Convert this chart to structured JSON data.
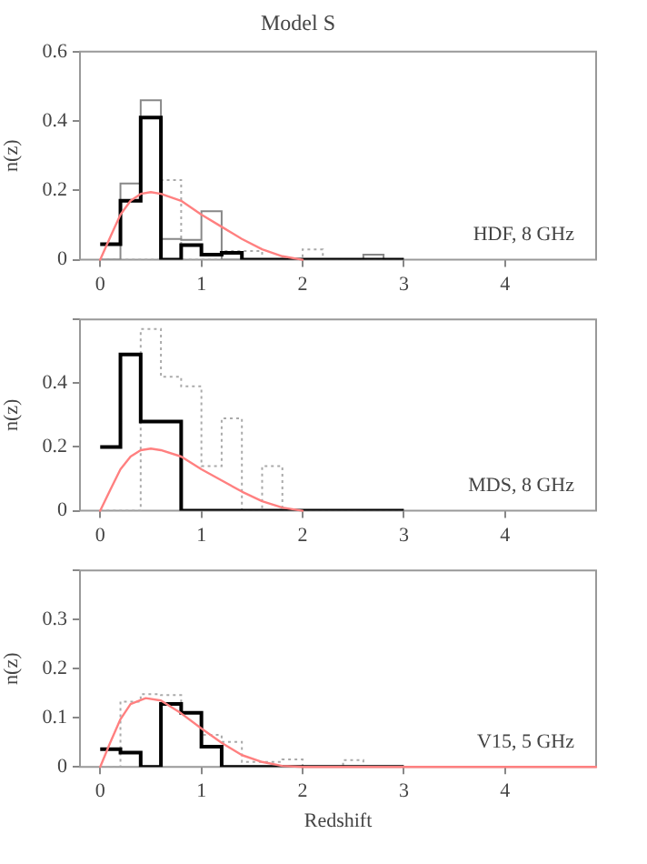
{
  "chart_data": [
    {
      "type": "histogram",
      "title": "Model S",
      "ylabel": "n(z)",
      "bins": [
        0,
        0.2,
        0.4,
        0.6,
        0.8,
        1.0,
        1.2,
        1.4,
        1.6,
        1.8,
        2.0,
        2.2,
        2.4,
        2.6,
        2.8,
        3.0
      ],
      "xlim": [
        -0.2,
        4.9
      ],
      "xticks": [
        0,
        1,
        2,
        3,
        4
      ],
      "ylim": [
        0,
        0.6
      ],
      "yticks": [
        0,
        0.2,
        0.4,
        0.6
      ],
      "annotations": [
        "HDF, 8 GHz"
      ],
      "series": [
        {
          "color": "#000000",
          "values": [
            0.045,
            0.17,
            0.41,
            0,
            0.042,
            0.015,
            0.02,
            0,
            0,
            0,
            0,
            0,
            0,
            0,
            0
          ]
        },
        {
          "color": "#888888",
          "values": [
            0,
            0.22,
            0.46,
            0.06,
            0.057,
            0.14,
            0,
            0,
            0,
            0,
            0,
            0,
            0,
            0.015,
            0
          ]
        },
        {
          "color": "#aaaaaa",
          "line_style": "dotted",
          "values": [
            0,
            0,
            0,
            0.23,
            0,
            0,
            0.025,
            0.025,
            0,
            0,
            0.03,
            0,
            0,
            0,
            0
          ]
        },
        {
          "type": "line",
          "color": "#ff8080",
          "x": [
            0,
            0.1,
            0.2,
            0.3,
            0.4,
            0.5,
            0.6,
            0.8,
            1.0,
            1.2,
            1.4,
            1.6,
            1.8,
            2.0
          ],
          "values": [
            0,
            0.066,
            0.13,
            0.17,
            0.19,
            0.195,
            0.19,
            0.17,
            0.13,
            0.095,
            0.06,
            0.03,
            0.01,
            0
          ]
        }
      ]
    },
    {
      "type": "histogram",
      "ylabel": "n(z)",
      "bins": [
        0,
        0.2,
        0.4,
        0.6,
        0.8,
        1.0,
        1.2,
        1.4,
        1.6,
        1.8,
        2.0,
        2.2,
        2.4,
        2.6,
        2.8,
        3.0
      ],
      "xlim": [
        -0.2,
        4.9
      ],
      "xticks": [
        0,
        1,
        2,
        3,
        4
      ],
      "ylim": [
        0,
        0.6
      ],
      "yticks": [
        0,
        0.2,
        0.4,
        {
          "value": 0.6,
          "label": null
        }
      ],
      "annotations": [
        "MDS, 8 GHz"
      ],
      "series": [
        {
          "color": "#000000",
          "values": [
            0.2,
            0.49,
            0.28,
            0.28,
            0,
            0,
            0,
            0,
            0,
            0,
            0,
            0,
            0,
            0,
            0
          ]
        },
        {
          "color": "#aaaaaa",
          "line_style": "dotted",
          "values": [
            0,
            0,
            0.57,
            0.42,
            0.39,
            0.14,
            0.29,
            0,
            0.14,
            0,
            0,
            0,
            0,
            0,
            0
          ]
        },
        {
          "type": "line",
          "color": "#ff8080",
          "x": [
            0,
            0.1,
            0.2,
            0.3,
            0.4,
            0.5,
            0.6,
            0.8,
            1.0,
            1.2,
            1.4,
            1.6,
            1.8,
            2.0
          ],
          "values": [
            0,
            0.066,
            0.13,
            0.17,
            0.19,
            0.195,
            0.19,
            0.17,
            0.13,
            0.095,
            0.06,
            0.03,
            0.01,
            0
          ]
        }
      ]
    },
    {
      "type": "histogram",
      "ylabel": "n(z)",
      "xlabel": "Redshift",
      "bins": [
        0,
        0.2,
        0.4,
        0.6,
        0.8,
        1.0,
        1.2,
        1.4,
        1.6,
        1.8,
        2.0,
        2.2,
        2.4,
        2.6,
        2.8,
        3.0
      ],
      "xlim": [
        -0.2,
        4.9
      ],
      "xticks": [
        0,
        1,
        2,
        3,
        4
      ],
      "ylim": [
        0,
        0.4
      ],
      "yticks": [
        0,
        0.1,
        0.2,
        0.3,
        {
          "value": 0.4,
          "label": null
        }
      ],
      "annotations": [
        "V15, 5 GHz"
      ],
      "series": [
        {
          "color": "#000000",
          "values": [
            0.036,
            0.029,
            0,
            0.128,
            0.11,
            0.041,
            0,
            0,
            0,
            0,
            0,
            0,
            0,
            0,
            0
          ]
        },
        {
          "color": "#aaaaaa",
          "line_style": "dotted",
          "values": [
            0,
            0.133,
            0.148,
            0.146,
            0.11,
            0.065,
            0.051,
            0.01,
            0.01,
            0.015,
            0,
            0,
            0.014,
            0,
            0
          ]
        },
        {
          "type": "line",
          "color": "#ff8080",
          "x": [
            0,
            0.1,
            0.2,
            0.3,
            0.45,
            0.6,
            0.8,
            1.0,
            1.2,
            1.4,
            1.6,
            1.8,
            2.0,
            4.9
          ],
          "values": [
            0,
            0.05,
            0.097,
            0.128,
            0.14,
            0.135,
            0.109,
            0.078,
            0.049,
            0.024,
            0.01,
            0.002,
            0,
            0
          ]
        }
      ]
    }
  ]
}
